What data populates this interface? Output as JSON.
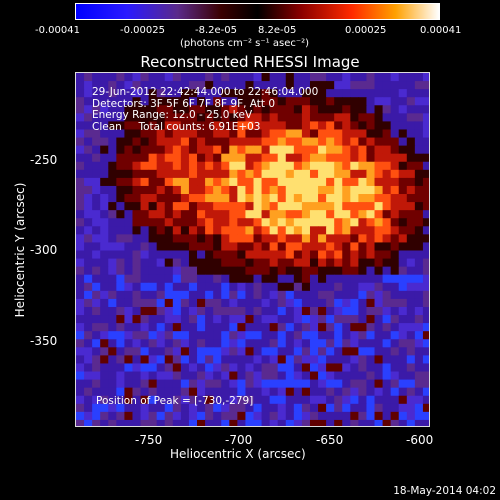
{
  "colorbar": {
    "ticks": [
      "-0.00041",
      "-0.00025",
      "-8.2e-05",
      "8.2e-05",
      "0.00025",
      "0.00041"
    ],
    "unit": "(photons cm⁻² s⁻¹ asec⁻²)"
  },
  "title": "Reconstructed RHESSI Image",
  "info": {
    "line1": "29-Jun-2012 22:42:44.000 to 22:46:04.000",
    "line2": "Detectors: 3F 5F 6F 7F 8F 9F, Att 0",
    "line3": "Energy Range: 12.0 - 25.0 keV",
    "line4": "Clean     Total counts: 6.91E+03"
  },
  "peak": "Position of Peak = [-730,-279]",
  "axes": {
    "xlabel": "Heliocentric X (arcsec)",
    "ylabel": "Heliocentric Y (arcsec)",
    "xticks": [
      "-750",
      "-700",
      "-650",
      "-600"
    ],
    "yticks": [
      "-250",
      "-300",
      "-350"
    ]
  },
  "date": "18-May-2014 04:02",
  "colors": {
    "background": "#000000",
    "cool": "#3b1a9e",
    "hot": "#ffd040"
  }
}
